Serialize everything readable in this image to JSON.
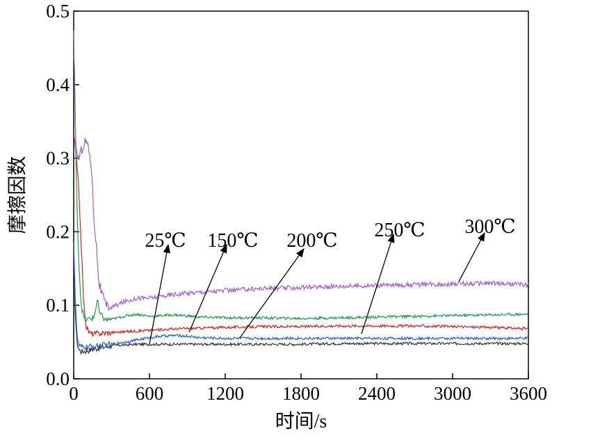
{
  "chart_data": {
    "type": "line",
    "title": "",
    "xlabel": "时间/s",
    "ylabel": "摩擦因数",
    "xlim": [
      0,
      3600
    ],
    "ylim": [
      0,
      0.5
    ],
    "xticks": [
      0,
      600,
      1200,
      1800,
      2400,
      3000,
      3600
    ],
    "yticks": [
      0.0,
      0.1,
      0.2,
      0.3,
      0.4,
      0.5
    ],
    "xtick_labels": [
      "0",
      "600",
      "1200",
      "1800",
      "2400",
      "3000",
      "3600"
    ],
    "ytick_labels": [
      "0.0",
      "0.1",
      "0.2",
      "0.3",
      "0.4",
      "0.5"
    ],
    "grid": false,
    "legend": "none",
    "series": [
      {
        "label": "25℃",
        "color": "#333333",
        "x": [
          0,
          10,
          25,
          40,
          60,
          100,
          150,
          200,
          300,
          400,
          500,
          600,
          800,
          1000,
          1200,
          1500,
          1800,
          2100,
          2400,
          2700,
          3000,
          3300,
          3600
        ],
        "y": [
          0.18,
          0.1,
          0.05,
          0.04,
          0.037,
          0.038,
          0.04,
          0.042,
          0.045,
          0.046,
          0.047,
          0.047,
          0.047,
          0.047,
          0.047,
          0.047,
          0.047,
          0.048,
          0.048,
          0.048,
          0.048,
          0.048,
          0.048
        ]
      },
      {
        "label": "150℃",
        "color": "#1f5fd0",
        "x": [
          0,
          10,
          25,
          40,
          60,
          100,
          150,
          200,
          300,
          400,
          500,
          600,
          700,
          800,
          900,
          1000,
          1200,
          1500,
          1800,
          2100,
          2400,
          2700,
          3000,
          3300,
          3600
        ],
        "y": [
          0.19,
          0.12,
          0.06,
          0.045,
          0.043,
          0.043,
          0.044,
          0.045,
          0.047,
          0.05,
          0.053,
          0.056,
          0.058,
          0.059,
          0.058,
          0.056,
          0.055,
          0.055,
          0.055,
          0.055,
          0.055,
          0.055,
          0.055,
          0.055,
          0.055
        ]
      },
      {
        "label": "200℃",
        "color": "#d62020",
        "x": [
          0,
          10,
          20,
          40,
          60,
          80,
          100,
          130,
          160,
          200,
          300,
          400,
          500,
          600,
          800,
          1000,
          1200,
          1500,
          1800,
          2100,
          2400,
          2700,
          3000,
          3300,
          3600
        ],
        "y": [
          0.33,
          0.32,
          0.3,
          0.26,
          0.18,
          0.1,
          0.07,
          0.062,
          0.061,
          0.062,
          0.063,
          0.064,
          0.065,
          0.066,
          0.068,
          0.069,
          0.07,
          0.071,
          0.071,
          0.072,
          0.072,
          0.072,
          0.071,
          0.07,
          0.068
        ]
      },
      {
        "label": "250℃",
        "color": "#1e9a48",
        "x": [
          0,
          8,
          15,
          25,
          40,
          60,
          80,
          100,
          130,
          160,
          190,
          200,
          250,
          300,
          400,
          500,
          600,
          800,
          1000,
          1200,
          1500,
          1800,
          2100,
          2400,
          2700,
          3000,
          3300,
          3600
        ],
        "y": [
          0.44,
          0.42,
          0.32,
          0.24,
          0.16,
          0.1,
          0.083,
          0.08,
          0.082,
          0.083,
          0.11,
          0.09,
          0.08,
          0.081,
          0.085,
          0.088,
          0.085,
          0.087,
          0.084,
          0.083,
          0.083,
          0.082,
          0.083,
          0.084,
          0.085,
          0.086,
          0.087,
          0.088
        ]
      },
      {
        "label": "300℃",
        "color": "#a15ad6",
        "x": [
          0,
          5,
          10,
          20,
          40,
          60,
          80,
          100,
          120,
          140,
          160,
          180,
          200,
          250,
          300,
          400,
          500,
          600,
          800,
          1000,
          1200,
          1500,
          1800,
          2100,
          2400,
          2700,
          3000,
          3300,
          3600
        ],
        "y": [
          0.47,
          0.42,
          0.35,
          0.31,
          0.3,
          0.31,
          0.32,
          0.325,
          0.31,
          0.29,
          0.22,
          0.18,
          0.13,
          0.1,
          0.097,
          0.105,
          0.11,
          0.11,
          0.115,
          0.118,
          0.12,
          0.123,
          0.124,
          0.126,
          0.127,
          0.128,
          0.129,
          0.13,
          0.128
        ]
      }
    ],
    "annotations": [
      {
        "text": "25℃",
        "series": "25℃"
      },
      {
        "text": "150℃",
        "series": "150℃"
      },
      {
        "text": "200℃",
        "series": "200℃"
      },
      {
        "text": "250℃",
        "series": "250℃"
      },
      {
        "text": "300℃",
        "series": "300℃"
      }
    ]
  }
}
